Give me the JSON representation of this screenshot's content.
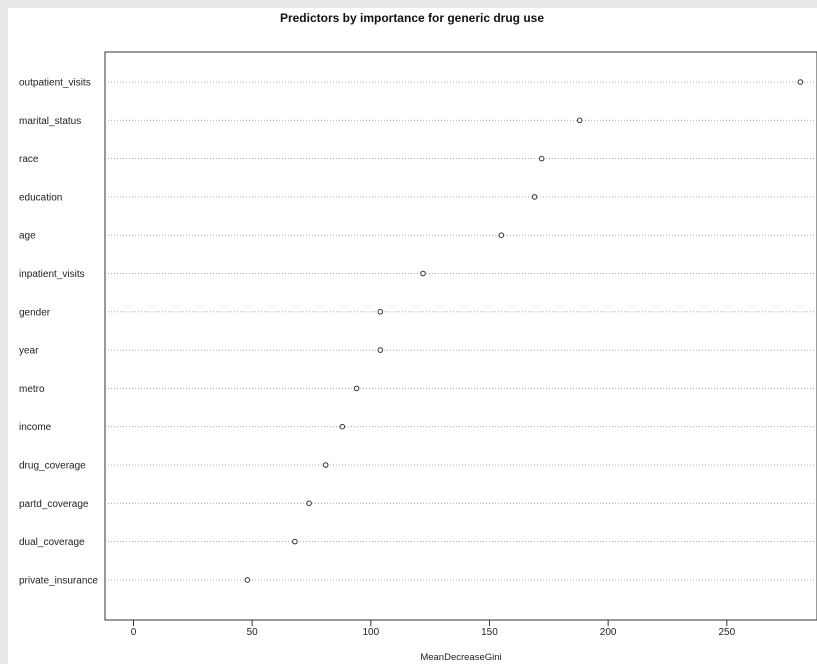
{
  "chart_data": {
    "type": "scatter",
    "subtype": "dotchart",
    "title": "Predictors by importance for generic drug use",
    "xlabel": "MeanDecreaseGini",
    "ylabel": "",
    "xlim": [
      -12,
      288
    ],
    "xticks": [
      0,
      50,
      100,
      150,
      200,
      250
    ],
    "grid": "horizontal dotted guide lines",
    "categories": [
      "outpatient_visits",
      "marital_status",
      "race",
      "education",
      "age",
      "inpatient_visits",
      "gender",
      "year",
      "metro",
      "income",
      "drug_coverage",
      "partd_coverage",
      "dual_coverage",
      "private_insurance"
    ],
    "values": [
      281,
      188,
      172,
      169,
      155,
      122,
      104,
      104,
      94,
      88,
      81,
      74,
      68,
      48
    ]
  }
}
